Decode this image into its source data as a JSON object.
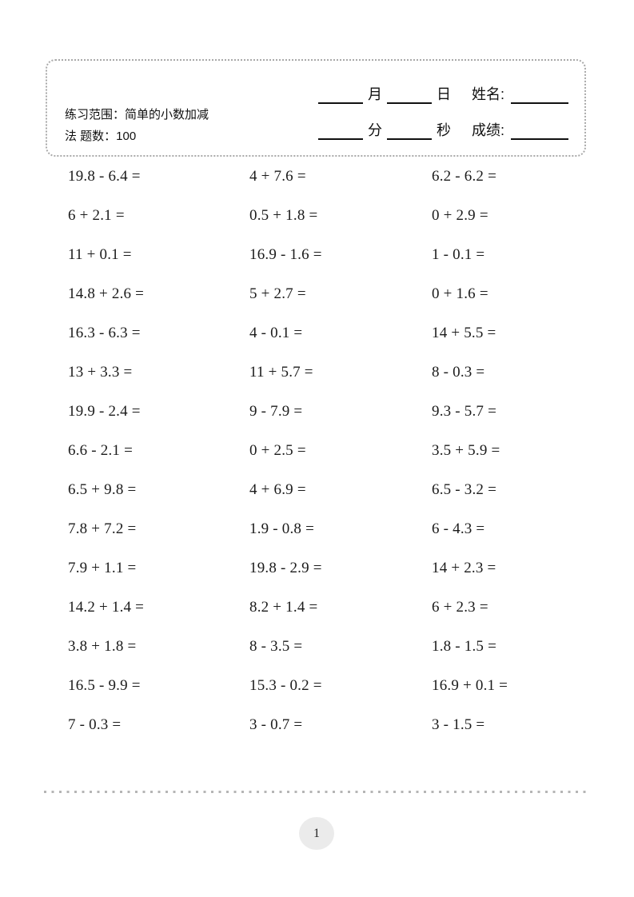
{
  "header": {
    "scope_line1": "练习范围：简单的小数加减",
    "scope_line2": "法 题数：100",
    "month_label": "月",
    "day_label": "日",
    "name_label": "姓名:",
    "minute_label": "分",
    "second_label": "秒",
    "score_label": "成绩:"
  },
  "problems": {
    "rows": [
      [
        "19.8 - 6.4 =",
        "4 + 7.6 =",
        "6.2 - 6.2 ="
      ],
      [
        "6 + 2.1 =",
        "0.5 + 1.8 =",
        "0 + 2.9 ="
      ],
      [
        "11 + 0.1 =",
        "16.9 - 1.6 =",
        "1 - 0.1 ="
      ],
      [
        "14.8 + 2.6 =",
        "5 + 2.7 =",
        "0 + 1.6 ="
      ],
      [
        "16.3 - 6.3 =",
        "4 - 0.1 =",
        "14 + 5.5 ="
      ],
      [
        "13 + 3.3 =",
        "11 + 5.7 =",
        "8 - 0.3 ="
      ],
      [
        "19.9 - 2.4 =",
        "9 - 7.9 =",
        "9.3 - 5.7 ="
      ],
      [
        "6.6 - 2.1 =",
        "0 + 2.5 =",
        "3.5 + 5.9 ="
      ],
      [
        "6.5 + 9.8 =",
        "4 + 6.9 =",
        "6.5 - 3.2 ="
      ],
      [
        "7.8 + 7.2 =",
        "1.9 - 0.8 =",
        "6 - 4.3 ="
      ],
      [
        "7.9 + 1.1 =",
        "19.8 - 2.9 =",
        "14 + 2.3 ="
      ],
      [
        "14.2 + 1.4 =",
        "8.2 + 1.4 =",
        "6 + 2.3 ="
      ],
      [
        "3.8 + 1.8 =",
        "8 - 3.5 =",
        "1.8 - 1.5 ="
      ],
      [
        "16.5 - 9.9 =",
        "15.3 - 0.2 =",
        "16.9 + 0.1 ="
      ],
      [
        "7 - 0.3 =",
        "3 - 0.7 =",
        "3 - 1.5 ="
      ]
    ]
  },
  "footer": {
    "page_number": "1"
  }
}
